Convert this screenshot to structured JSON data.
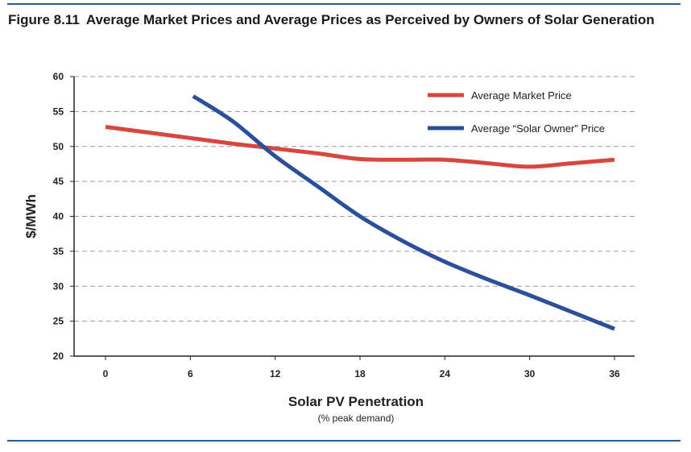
{
  "figure": {
    "number": "Figure 8.11",
    "title": "Average Market Prices and Average Prices as Perceived by Owners of Solar Generation"
  },
  "colors": {
    "market_price": "#d9463e",
    "solar_owner_price": "#2c4f9a",
    "rule": "#2a5a9c",
    "grid": "#9a9a9a"
  },
  "chart_data": {
    "type": "line",
    "xlabel": "Solar PV Penetration",
    "xlabel_sub": "(% peak demand)",
    "ylabel": "$/MWh",
    "xlim": [
      0,
      36
    ],
    "ylim": [
      20,
      60
    ],
    "xticks": [
      0,
      6,
      12,
      18,
      24,
      30,
      36
    ],
    "yticks": [
      20,
      25,
      30,
      35,
      40,
      45,
      50,
      55,
      60
    ],
    "grid": "horizontal dashed",
    "legend_position": "top-right",
    "series": [
      {
        "name": "Average Market Price",
        "color": "#d9463e",
        "x": [
          0,
          3,
          6,
          9,
          12,
          15,
          18,
          21,
          24,
          27,
          30,
          33,
          36
        ],
        "y": [
          52.8,
          52.0,
          51.2,
          50.4,
          49.7,
          49.0,
          48.2,
          48.1,
          48.1,
          47.6,
          47.1,
          47.6,
          48.1
        ]
      },
      {
        "name": "Average “Solar Owner” Price",
        "color": "#2c4f9a",
        "x": [
          6.2,
          9,
          12,
          15,
          18,
          21,
          24,
          27,
          30,
          33,
          36
        ],
        "y": [
          57.2,
          53.6,
          48.6,
          44.3,
          40.0,
          36.5,
          33.5,
          31.0,
          28.7,
          26.3,
          23.9
        ]
      }
    ]
  }
}
